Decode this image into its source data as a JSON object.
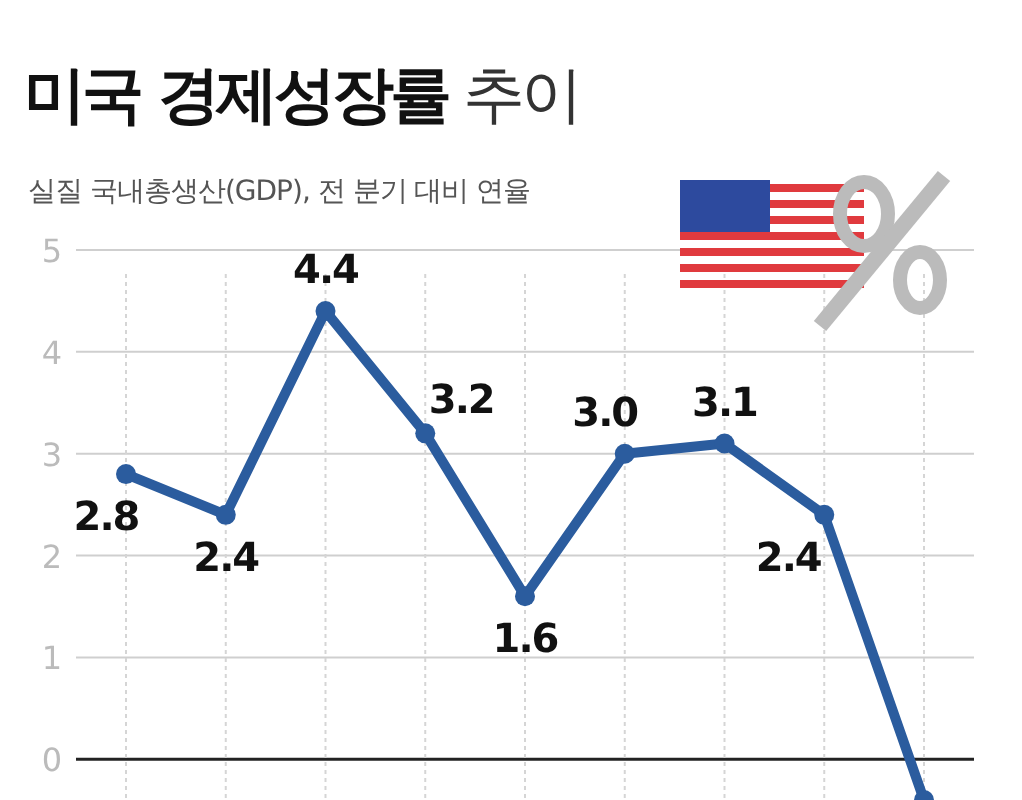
{
  "chart_data": {
    "type": "line",
    "title": "미국 경제성장률 추이",
    "subtitle": "실질 국내총생산(GDP), 전 분기 대비 연율",
    "categories": [
      null,
      null,
      null,
      null,
      null,
      null,
      null,
      null,
      null
    ],
    "series": [
      {
        "color": "#2b5c9e",
        "values": [
          2.8,
          2.4,
          4.4,
          3.2,
          1.6,
          3.0,
          3.1,
          2.4,
          -0.4
        ],
        "value_labels": [
          "2.8",
          "2.4",
          "4.4",
          "3.2",
          "1.6",
          "3.0",
          "3.1",
          "2.4",
          null
        ]
      }
    ],
    "ylim": [
      -0.4,
      5
    ],
    "yticks": [
      0,
      1,
      2,
      3,
      4,
      5
    ],
    "grid": true,
    "marker": "circle",
    "line_style": "solid",
    "tick_labels": "y"
  }
}
